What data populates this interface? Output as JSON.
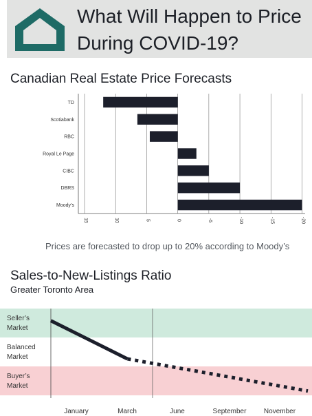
{
  "header": {
    "title_line1": "What Will Happen to Price",
    "title_line2": "During COVID-19?",
    "colors": {
      "band": "#e2e3e2",
      "logo": "#1e6b66",
      "text": "#1c1f26"
    }
  },
  "forecast": {
    "title": "Canadian Real Estate Price Forecasts",
    "note": "Prices are forecasted to drop up to 20% according to Moody’s"
  },
  "ratio": {
    "title": "Sales-to-New-Listings Ratio",
    "subtitle": "Greater Toronto Area",
    "zones": [
      {
        "line1": "Seller’s",
        "line2": "Market",
        "color": "#cfeadd"
      },
      {
        "line1": "Balanced",
        "line2": "Market",
        "color": "#ffffff"
      },
      {
        "line1": "Buyer’s",
        "line2": "Market",
        "color": "#f8d0d3"
      }
    ]
  },
  "chart_data": [
    {
      "type": "bar",
      "orientation": "horizontal",
      "title": "Canadian Real Estate Price Forecasts",
      "categories": [
        "TD",
        "Scotiabank",
        "RBC",
        "Royal Le Page",
        "CIBC",
        "DBRS",
        "Moody’s"
      ],
      "values": [
        12,
        6.5,
        4.5,
        -3,
        -5,
        -10,
        -20
      ],
      "x_ticks": [
        15,
        10,
        5,
        0,
        -5,
        -10,
        -15,
        -20
      ],
      "x_tick_labels": [
        "15",
        "10",
        "5",
        "0",
        "-5",
        "-10",
        "-15",
        "-20"
      ],
      "xlim": [
        16,
        -20.5
      ],
      "x_axis_reversed": true,
      "grid": "vertical",
      "bar_color": "#1c1f2b"
    },
    {
      "type": "line",
      "title": "Sales-to-New-Listings Ratio",
      "subtitle": "Greater Toronto Area",
      "x_labels": [
        "January",
        "March",
        "June",
        "September",
        "November"
      ],
      "ylim": [
        0,
        1
      ],
      "series": [
        {
          "style": "solid",
          "x": [
            0,
            1.55
          ],
          "y": [
            0.86,
            0.42
          ]
        },
        {
          "style": "dotted",
          "x": [
            1.55,
            5.2
          ],
          "y": [
            0.42,
            0.05
          ]
        }
      ],
      "y_zones": [
        "Seller’s Market",
        "Balanced Market",
        "Buyer’s Market"
      ],
      "color": "#1c1f2b"
    }
  ]
}
